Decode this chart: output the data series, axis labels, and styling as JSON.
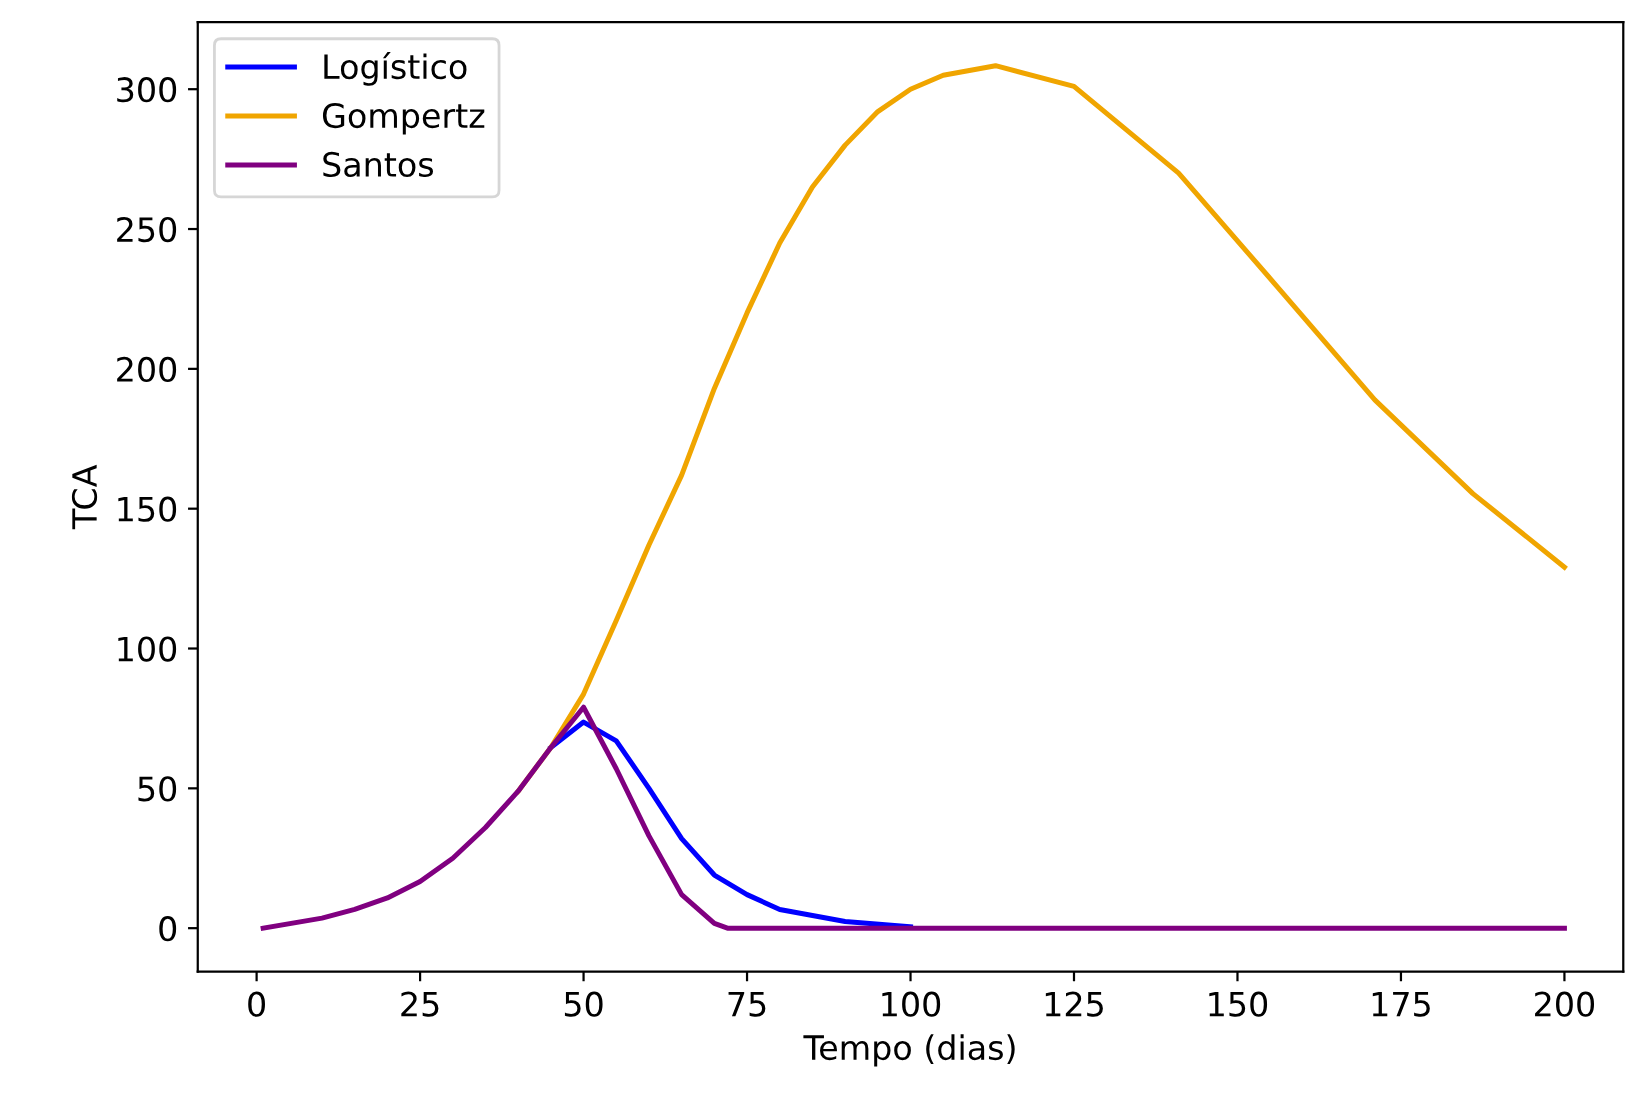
{
  "chart_data": {
    "type": "line",
    "xlabel": "Tempo (dias)",
    "ylabel": "TCA",
    "xlim": [
      -9,
      209
    ],
    "ylim": [
      -15.5,
      324
    ],
    "xticks": [
      0,
      25,
      50,
      75,
      100,
      125,
      150,
      175,
      200
    ],
    "yticks": [
      0,
      50,
      100,
      150,
      200,
      250,
      300
    ],
    "grid": false,
    "legend": "top left",
    "series": [
      {
        "name": "Logístico",
        "color": "#0000ff",
        "x": [
          45,
          50,
          55,
          60,
          65,
          70,
          75,
          80,
          90,
          100
        ],
        "values": [
          64.6,
          73.7,
          67,
          50,
          32,
          19,
          12,
          6.7,
          2.4,
          0.5
        ]
      },
      {
        "name": "Gompertz",
        "color": "#f0a500",
        "x": [
          40,
          45,
          50,
          55,
          60,
          65,
          70,
          75,
          80,
          85,
          90,
          95,
          100,
          105,
          113,
          125,
          141,
          156,
          171,
          186,
          200
        ],
        "values": [
          49,
          64.6,
          83.7,
          110,
          137,
          162,
          193,
          220,
          245,
          265,
          280,
          292,
          300,
          305,
          308.4,
          301,
          270,
          229.6,
          188.9,
          155.4,
          129.1
        ]
      },
      {
        "name": "Santos",
        "color": "#800080",
        "x": [
          1,
          10,
          15,
          20,
          25,
          30,
          35,
          40,
          45,
          50,
          55,
          60,
          65,
          70,
          72,
          100,
          150,
          200
        ],
        "values": [
          0,
          3.6,
          6.7,
          10.8,
          16.7,
          25,
          36,
          49,
          64.6,
          79,
          57,
          33,
          12,
          1.7,
          0,
          0,
          0,
          0
        ]
      }
    ]
  }
}
